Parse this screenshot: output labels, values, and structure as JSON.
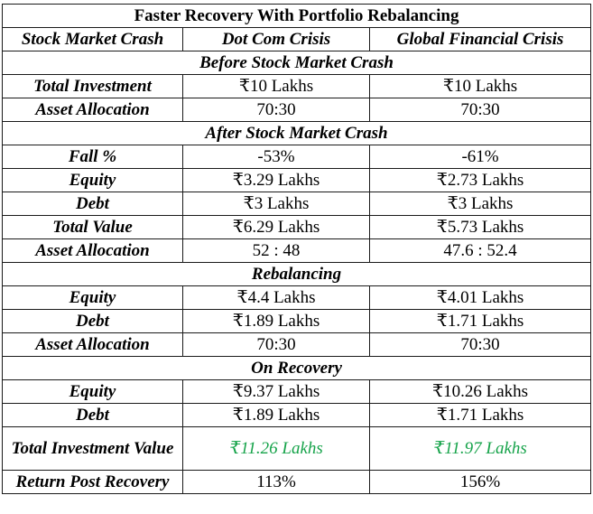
{
  "title": "Faster Recovery With Portfolio Rebalancing",
  "columns": [
    "Stock Market Crash",
    "Dot Com Crisis",
    "Global Financial Crisis"
  ],
  "sections": {
    "before": {
      "heading": "Before Stock Market Crash",
      "rows": [
        {
          "label": "Total Investment",
          "dotcom": "₹10 Lakhs",
          "gfc": "₹10 Lakhs"
        },
        {
          "label": "Asset Allocation",
          "dotcom": "70:30",
          "gfc": "70:30"
        }
      ]
    },
    "after": {
      "heading": "After Stock Market Crash",
      "rows": [
        {
          "label": "Fall %",
          "dotcom": "-53%",
          "gfc": "-61%"
        },
        {
          "label": "Equity",
          "dotcom": "₹3.29 Lakhs",
          "gfc": "₹2.73 Lakhs"
        },
        {
          "label": "Debt",
          "dotcom": "₹3 Lakhs",
          "gfc": "₹3 Lakhs"
        },
        {
          "label": "Total Value",
          "dotcom": "₹6.29 Lakhs",
          "gfc": "₹5.73 Lakhs"
        },
        {
          "label": "Asset Allocation",
          "dotcom": "52 : 48",
          "gfc": "47.6 : 52.4"
        }
      ]
    },
    "rebalancing": {
      "heading": "Rebalancing",
      "rows": [
        {
          "label": "Equity",
          "dotcom": "₹4.4 Lakhs",
          "gfc": "₹4.01 Lakhs"
        },
        {
          "label": "Debt",
          "dotcom": "₹1.89 Lakhs",
          "gfc": "₹1.71 Lakhs"
        },
        {
          "label": "Asset Allocation",
          "dotcom": "70:30",
          "gfc": "70:30"
        }
      ]
    },
    "recovery": {
      "heading": "On Recovery",
      "rows": [
        {
          "label": "Equity",
          "dotcom": "₹9.37 Lakhs",
          "gfc": "₹10.26 Lakhs"
        },
        {
          "label": "Debt",
          "dotcom": "₹1.89 Lakhs",
          "gfc": "₹1.71 Lakhs"
        },
        {
          "label": "Total Investment Value",
          "dotcom": "₹11.26 Lakhs",
          "gfc": "₹11.97 Lakhs"
        },
        {
          "label": "Return Post Recovery",
          "dotcom": "113%",
          "gfc": "156%"
        }
      ]
    }
  },
  "colors": {
    "highlight": "#16a34a",
    "border": "#1a1a1a"
  }
}
